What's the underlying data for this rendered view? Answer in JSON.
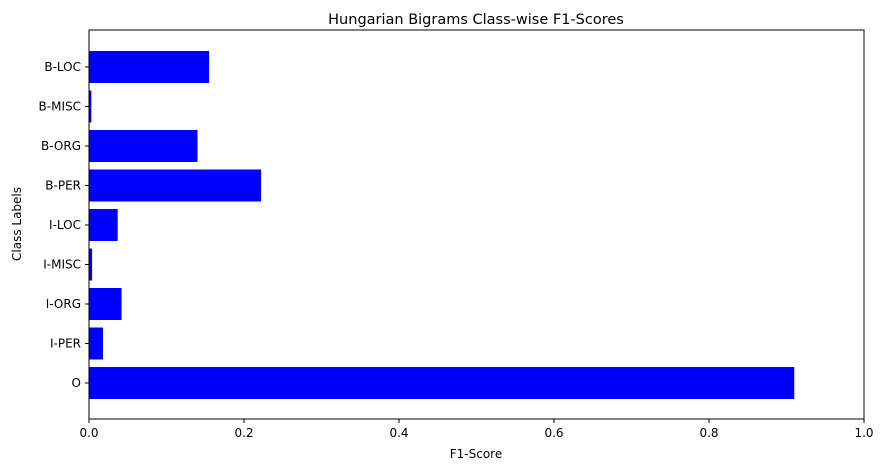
{
  "chart_data": {
    "type": "bar",
    "orientation": "horizontal",
    "title": "Hungarian Bigrams Class-wise F1-Scores",
    "xlabel": "F1-Score",
    "ylabel": "Class Labels",
    "categories": [
      "O",
      "I-PER",
      "I-ORG",
      "I-MISC",
      "I-LOC",
      "B-PER",
      "B-ORG",
      "B-MISC",
      "B-LOC"
    ],
    "values": [
      0.91,
      0.018,
      0.042,
      0.004,
      0.037,
      0.222,
      0.14,
      0.003,
      0.155
    ],
    "xlim": [
      0,
      1
    ],
    "xticks": [
      "0.0",
      "0.2",
      "0.4",
      "0.6",
      "0.8",
      "1.0"
    ],
    "bar_color": "#0000ff",
    "grid": false,
    "legend": "none"
  }
}
